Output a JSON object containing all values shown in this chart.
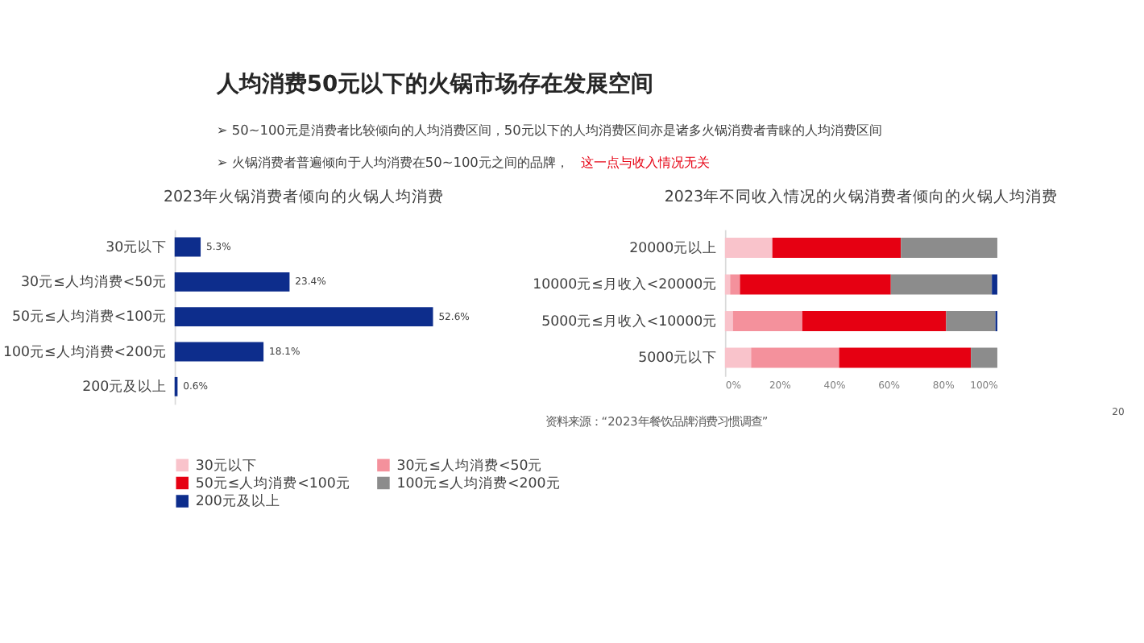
{
  "chart_data": [
    {
      "type": "bar",
      "orientation": "horizontal",
      "title": "2023年火锅消费者倾向的火锅人均消费",
      "categories": [
        "30元以下",
        "30元≤人均消费<50元",
        "50元≤人均消费<100元",
        "100元≤人均消费<200元",
        "200元及以上"
      ],
      "values": [
        5.3,
        23.4,
        52.6,
        18.1,
        0.6
      ],
      "value_labels": [
        "5.3%",
        "23.4%",
        "52.6%",
        "18.1%",
        "0.6%"
      ],
      "color": "#0d2d8c",
      "annotations": [
        "人均消费50元以下的火锅市场存在发展空间",
        "➢  50~100元是消费者比较倾向的人均消费区间，50元以下的人均消费区间亦是诸多火锅消费者青睐的人均消费区间",
        "➢  火锅消费者普遍倾向于人均消费在50~100元之间的品牌，",
        "这一点与收入情况无关",
        "资料来源：“2023年餐饮品牌消费习惯调查”",
        "20"
      ]
    },
    {
      "type": "bar",
      "orientation": "horizontal",
      "stacked": true,
      "title": "2023年不同收入情况的火锅消费者倾向的火锅人均消费",
      "categories": [
        "20000元以上",
        "10000元≤月收入<20000元",
        "5000元≤月收入<10000元",
        "5000元以下"
      ],
      "series": [
        {
          "name": "30元以下",
          "color": "#f9c3cb",
          "values": [
            17.4,
            1.9,
            2.9,
            9.6
          ]
        },
        {
          "name": "30元≤人均消费<50元",
          "color": "#f4919c",
          "values": [
            0,
            3.6,
            25.5,
            32.3
          ]
        },
        {
          "name": "50元≤人均消费<100元",
          "color": "#e60012",
          "values": [
            47.2,
            55.4,
            52.8,
            48.4
          ]
        },
        {
          "name": "100元≤人均消费<200元",
          "color": "#8c8c8c",
          "values": [
            35.4,
            37.1,
            18.1,
            9.7
          ]
        },
        {
          "name": "200元及以上",
          "color": "#0d2d8c",
          "values": [
            0,
            2.0,
            0.7,
            0
          ]
        }
      ],
      "xlim": [
        0,
        100
      ],
      "xticks": [
        {
          "value": 0,
          "label": "0%"
        },
        {
          "value": 20,
          "label": "20%"
        },
        {
          "value": 40,
          "label": "40%"
        },
        {
          "value": 60,
          "label": "60%"
        },
        {
          "value": 80,
          "label": "80%"
        },
        {
          "value": 100,
          "label": "100%"
        }
      ],
      "legend": "bottom"
    }
  ]
}
